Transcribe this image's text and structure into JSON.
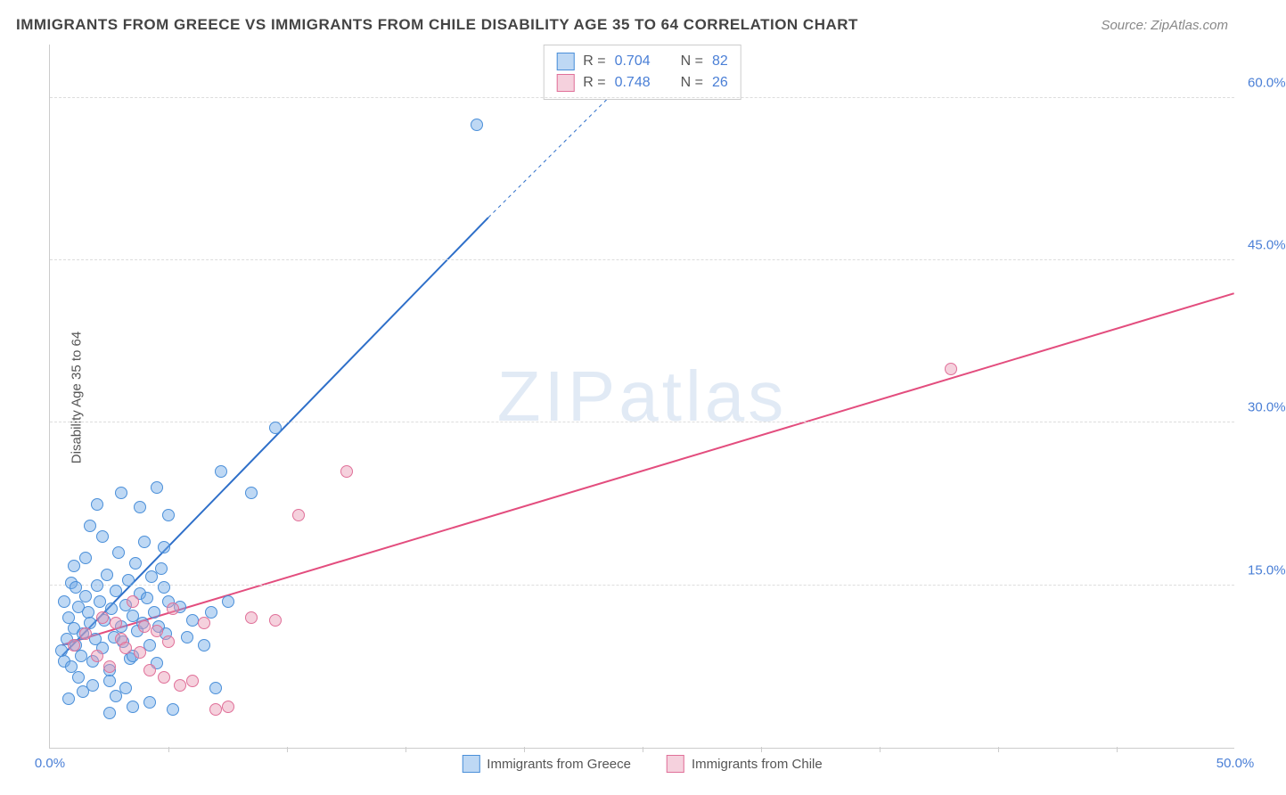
{
  "title": "IMMIGRANTS FROM GREECE VS IMMIGRANTS FROM CHILE DISABILITY AGE 35 TO 64 CORRELATION CHART",
  "title_fontsize": 17,
  "title_color": "#444444",
  "source_label": "Source: ZipAtlas.com",
  "source_fontsize": 15,
  "ylabel": "Disability Age 35 to 64",
  "ylabel_fontsize": 15,
  "watermark": "ZIPatlas",
  "chart": {
    "type": "scatter",
    "background_color": "#ffffff",
    "grid_color": "#dddddd",
    "axis_color": "#cccccc",
    "tick_color": "#4a7fd6",
    "xlim": [
      0,
      50
    ],
    "ylim": [
      0,
      65
    ],
    "xticks": [
      0,
      50
    ],
    "xtick_labels": [
      "0.0%",
      "50.0%"
    ],
    "xminor_step": 5,
    "yticks": [
      15,
      30,
      45,
      60
    ],
    "ytick_labels": [
      "15.0%",
      "30.0%",
      "45.0%",
      "60.0%"
    ],
    "marker_radius": 7,
    "marker_opacity": 0.55,
    "line_width": 2
  },
  "series": [
    {
      "name": "Immigrants from Greece",
      "color": "#6ea8e6",
      "fill": "rgba(110,168,230,0.45)",
      "stroke": "#4a8fd9",
      "line_color": "#2e6fc9",
      "R": "0.704",
      "N": "82",
      "trend": {
        "x1": 0.5,
        "y1": 8.5,
        "x2": 18.5,
        "y2": 49,
        "dash_after_x": 18.5,
        "dash_to_x": 24,
        "dash_to_y": 61
      },
      "points": [
        [
          0.5,
          9
        ],
        [
          0.6,
          8
        ],
        [
          0.7,
          10
        ],
        [
          0.8,
          12
        ],
        [
          0.9,
          7.5
        ],
        [
          1.0,
          11
        ],
        [
          1.1,
          9.5
        ],
        [
          1.2,
          13
        ],
        [
          1.3,
          8.5
        ],
        [
          1.4,
          10.5
        ],
        [
          1.5,
          14
        ],
        [
          1.6,
          12.5
        ],
        [
          1.7,
          11.5
        ],
        [
          1.8,
          8
        ],
        [
          1.9,
          10
        ],
        [
          2.0,
          15
        ],
        [
          2.1,
          13.5
        ],
        [
          2.2,
          9.2
        ],
        [
          2.3,
          11.8
        ],
        [
          2.4,
          16
        ],
        [
          2.5,
          7.2
        ],
        [
          2.6,
          12.8
        ],
        [
          2.7,
          10.2
        ],
        [
          2.8,
          14.5
        ],
        [
          2.9,
          18
        ],
        [
          3.0,
          11.2
        ],
        [
          3.1,
          9.8
        ],
        [
          3.2,
          13.2
        ],
        [
          3.3,
          15.5
        ],
        [
          3.4,
          8.2
        ],
        [
          3.5,
          12.2
        ],
        [
          3.6,
          17
        ],
        [
          3.7,
          10.8
        ],
        [
          3.8,
          14.2
        ],
        [
          3.9,
          11.5
        ],
        [
          4.0,
          19
        ],
        [
          4.1,
          13.8
        ],
        [
          4.2,
          9.5
        ],
        [
          4.3,
          15.8
        ],
        [
          4.4,
          12.5
        ],
        [
          4.5,
          7.8
        ],
        [
          4.6,
          11.2
        ],
        [
          4.7,
          16.5
        ],
        [
          4.8,
          14.8
        ],
        [
          4.9,
          10.5
        ],
        [
          5.0,
          13.5
        ],
        [
          1.2,
          6.5
        ],
        [
          1.8,
          5.8
        ],
        [
          2.5,
          6.2
        ],
        [
          3.2,
          5.5
        ],
        [
          1.5,
          17.5
        ],
        [
          2.2,
          19.5
        ],
        [
          1.0,
          16.8
        ],
        [
          0.8,
          4.5
        ],
        [
          1.4,
          5.2
        ],
        [
          2.8,
          4.8
        ],
        [
          3.5,
          3.8
        ],
        [
          4.2,
          4.2
        ],
        [
          0.6,
          13.5
        ],
        [
          0.9,
          15.2
        ],
        [
          1.1,
          14.8
        ],
        [
          5.5,
          13
        ],
        [
          6.0,
          11.8
        ],
        [
          6.5,
          9.5
        ],
        [
          7.0,
          5.5
        ],
        [
          7.5,
          13.5
        ],
        [
          2.0,
          22.5
        ],
        [
          3.0,
          23.5
        ],
        [
          4.5,
          24
        ],
        [
          5.0,
          21.5
        ],
        [
          3.8,
          22.2
        ],
        [
          2.5,
          3.2
        ],
        [
          5.2,
          3.5
        ],
        [
          6.8,
          12.5
        ],
        [
          1.7,
          20.5
        ],
        [
          8.5,
          23.5
        ],
        [
          7.2,
          25.5
        ],
        [
          9.5,
          29.5
        ],
        [
          5.8,
          10.2
        ],
        [
          4.8,
          18.5
        ],
        [
          18,
          57.5
        ],
        [
          3.5,
          8.5
        ]
      ]
    },
    {
      "name": "Immigrants from Chile",
      "color": "#e89ab3",
      "fill": "rgba(232,154,179,0.45)",
      "stroke": "#e07099",
      "line_color": "#e34d7e",
      "R": "0.748",
      "N": "26",
      "trend": {
        "x1": 0.5,
        "y1": 9.5,
        "x2": 50,
        "y2": 42
      },
      "points": [
        [
          1.0,
          9.5
        ],
        [
          1.5,
          10.5
        ],
        [
          2.0,
          8.5
        ],
        [
          2.2,
          12
        ],
        [
          2.5,
          7.5
        ],
        [
          2.8,
          11.5
        ],
        [
          3.0,
          10
        ],
        [
          3.2,
          9.2
        ],
        [
          3.5,
          13.5
        ],
        [
          3.8,
          8.8
        ],
        [
          4.0,
          11.2
        ],
        [
          4.2,
          7.2
        ],
        [
          4.5,
          10.8
        ],
        [
          4.8,
          6.5
        ],
        [
          5.2,
          12.8
        ],
        [
          5.5,
          5.8
        ],
        [
          6.0,
          6.2
        ],
        [
          7.0,
          3.5
        ],
        [
          8.5,
          12
        ],
        [
          6.5,
          11.5
        ],
        [
          9.5,
          11.8
        ],
        [
          10.5,
          21.5
        ],
        [
          12.5,
          25.5
        ],
        [
          7.5,
          3.8
        ],
        [
          5.0,
          9.8
        ],
        [
          38,
          35
        ]
      ]
    }
  ],
  "legend_top": {
    "R_label": "R =",
    "N_label": "N ="
  },
  "legend_bottom_labels": [
    "Immigrants from Greece",
    "Immigrants from Chile"
  ]
}
